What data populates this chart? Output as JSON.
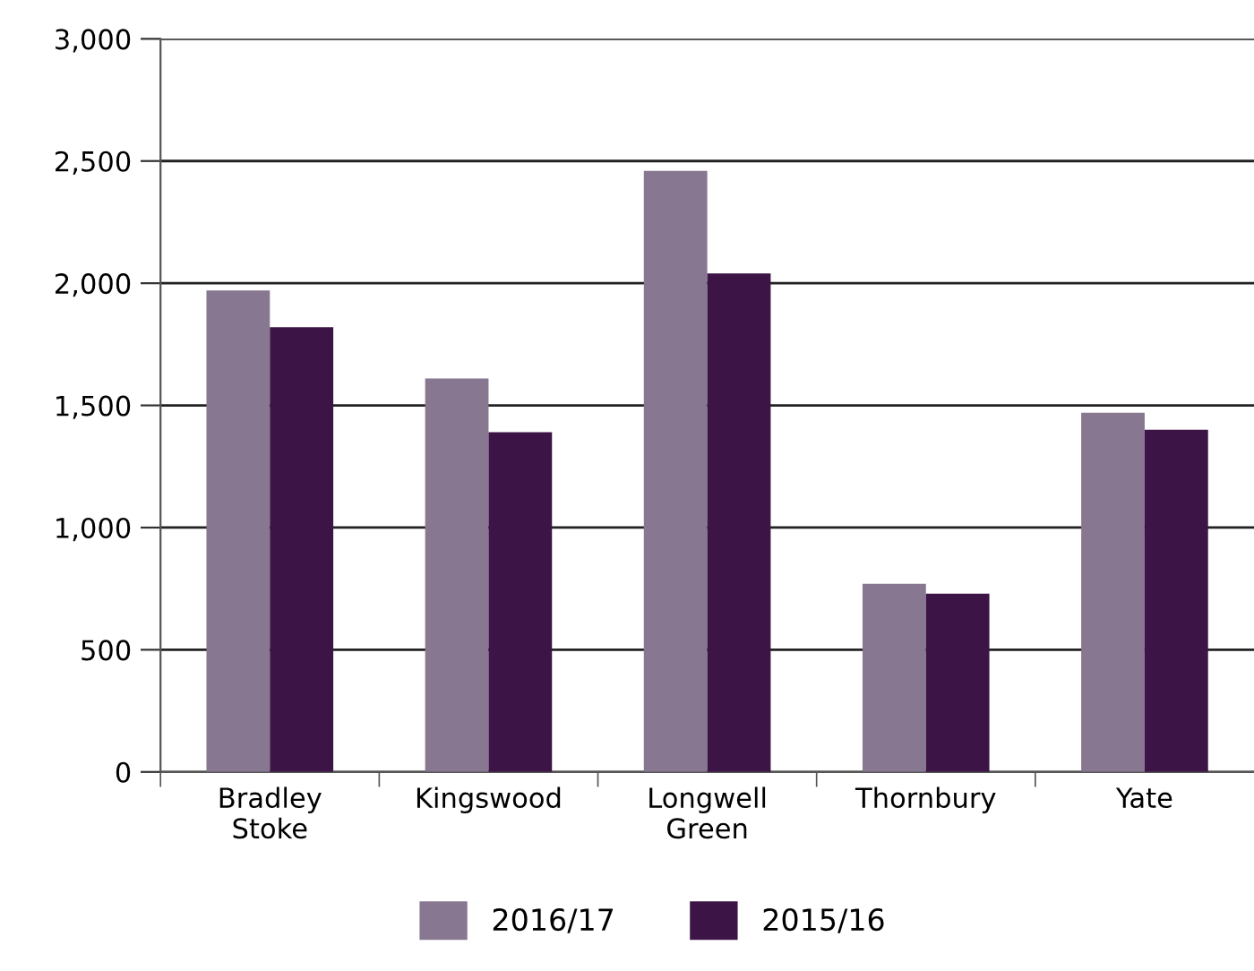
{
  "chart_data": {
    "type": "bar",
    "categories": [
      "Bradley\nStoke",
      "Kingswood",
      "Longwell\nGreen",
      "Thornbury",
      "Yate"
    ],
    "series": [
      {
        "name": "2016/17",
        "color": "#877790",
        "values": [
          1970,
          1610,
          2460,
          770,
          1470
        ]
      },
      {
        "name": "2015/16",
        "color": "#3c1445",
        "values": [
          1820,
          1390,
          2040,
          730,
          1400
        ]
      }
    ],
    "ylim": [
      0,
      3000
    ],
    "yticks": [
      {
        "value": 0,
        "label": "0"
      },
      {
        "value": 500,
        "label": "500"
      },
      {
        "value": 1000,
        "label": "1,000"
      },
      {
        "value": 1500,
        "label": "1,500"
      },
      {
        "value": 2000,
        "label": "2,000"
      },
      {
        "value": 2500,
        "label": "2,500"
      },
      {
        "value": 3000,
        "label": "3,000"
      }
    ],
    "grid": "y",
    "legend": "bottom"
  }
}
